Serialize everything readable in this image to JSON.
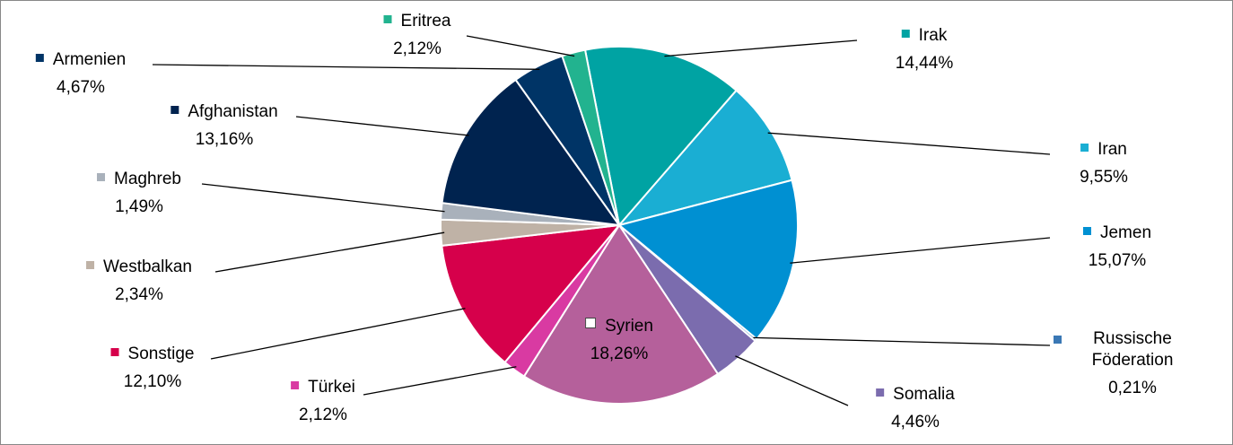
{
  "chart_data": {
    "type": "pie",
    "categories": [
      "Irak",
      "Iran",
      "Jemen",
      "Russische Föderation",
      "Somalia",
      "Syrien",
      "Türkei",
      "Sonstige",
      "Westbalkan",
      "Maghreb",
      "Afghanistan",
      "Armenien",
      "Eritrea"
    ],
    "values": [
      14.44,
      9.55,
      15.07,
      0.21,
      4.46,
      18.26,
      2.12,
      12.1,
      2.34,
      1.49,
      13.16,
      4.67,
      2.12
    ],
    "value_labels": [
      "14,44%",
      "9,55%",
      "15,07%",
      "0,21%",
      "4,46%",
      "18,26%",
      "2,12%",
      "12,10%",
      "2,34%",
      "1,49%",
      "13,16%",
      "4,67%",
      "2,12%"
    ],
    "colors": [
      "#00a3a3",
      "#1aaed3",
      "#0090d2",
      "#3a78b5",
      "#7b6cae",
      "#b5609b",
      "#d93aa2",
      "#d6004b",
      "#bfb2a6",
      "#a9b1bb",
      "#00234f",
      "#003466",
      "#22b38f"
    ]
  }
}
